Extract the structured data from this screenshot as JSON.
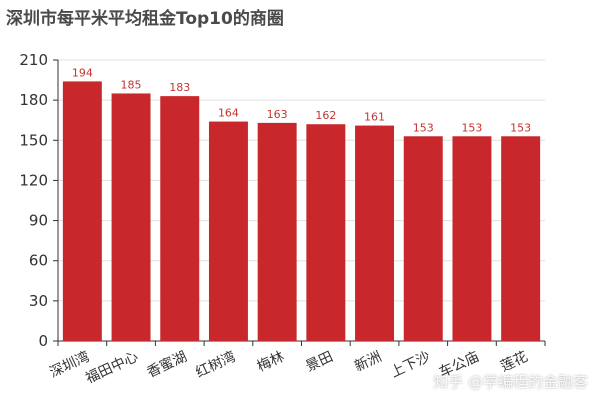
{
  "chart_data": {
    "type": "bar",
    "title": "深圳市每平米平均租金Top10的商圈",
    "categories": [
      "深圳湾",
      "福田中心",
      "香蜜湖",
      "红树湾",
      "梅林",
      "景田",
      "新洲",
      "上下沙",
      "车公庙",
      "莲花"
    ],
    "values": [
      194,
      185,
      183,
      164,
      163,
      162,
      161,
      153,
      153,
      153
    ],
    "ylim": [
      0,
      210
    ],
    "yticks": [
      0,
      30,
      60,
      90,
      120,
      150,
      180,
      210
    ],
    "grid": true,
    "bar_color": "#c8282c",
    "label_color": "#c23531"
  },
  "watermark": "知乎 @学编程的金融客"
}
